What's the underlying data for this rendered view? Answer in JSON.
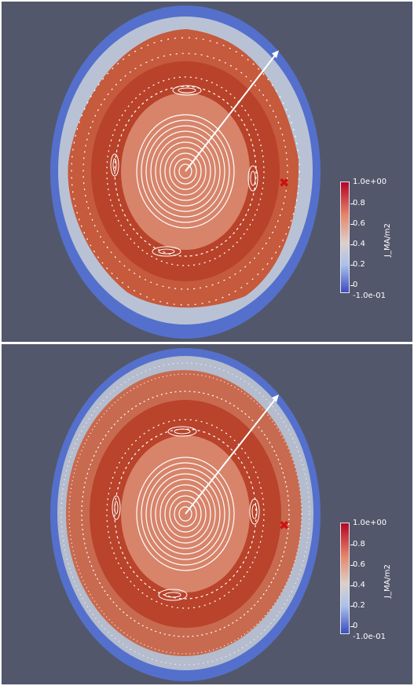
{
  "colorbar": {
    "title": "J_MA/m2",
    "max_label": "1.0e+00",
    "min_label": "-1.0e-01",
    "ticks": [
      "0.8",
      "0.6",
      "0.4",
      "0.2",
      "0"
    ],
    "colors": {
      "low": "#3b4cc0",
      "mid": "#dddddd",
      "high": "#b40426"
    }
  },
  "panels": [
    {
      "id": "top",
      "description": "Poincare plot upper"
    },
    {
      "id": "bottom",
      "description": "Poincare plot lower"
    }
  ],
  "marker": {
    "symbol": "x",
    "color": "#cc1111"
  },
  "background_color": "#52576b"
}
